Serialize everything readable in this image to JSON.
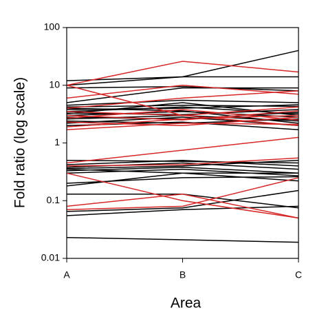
{
  "chart_data": {
    "type": "line",
    "x_label": "Area",
    "y_label": "Fold ratio (log scale)",
    "categories": [
      "A",
      "B",
      "C"
    ],
    "log_scale": true,
    "ylim": [
      0.01,
      100
    ],
    "yticks": [
      100,
      10,
      1,
      0.1,
      0.01
    ],
    "series": [
      {
        "color": "#000000",
        "values": [
          12,
          14,
          40
        ]
      },
      {
        "color": "#000000",
        "values": [
          10,
          14,
          14
        ]
      },
      {
        "color": "#000000",
        "values": [
          9,
          9.5,
          8
        ]
      },
      {
        "color": "#000000",
        "values": [
          5,
          9,
          9
        ]
      },
      {
        "color": "#000000",
        "values": [
          4.5,
          5.5,
          5
        ]
      },
      {
        "color": "#000000",
        "values": [
          4.2,
          4.5,
          4.3
        ]
      },
      {
        "color": "#000000",
        "values": [
          3.8,
          4,
          4.6
        ]
      },
      {
        "color": "#000000",
        "values": [
          3.5,
          4.2,
          3.2
        ]
      },
      {
        "color": "#000000",
        "values": [
          3.3,
          3.1,
          3.8
        ]
      },
      {
        "color": "#000000",
        "values": [
          3,
          3.5,
          2.8
        ]
      },
      {
        "color": "#000000",
        "values": [
          2.8,
          2.6,
          3.4
        ]
      },
      {
        "color": "#000000",
        "values": [
          2.6,
          3,
          2.4
        ]
      },
      {
        "color": "#000000",
        "values": [
          2.4,
          2.2,
          2.6
        ]
      },
      {
        "color": "#000000",
        "values": [
          2.2,
          2.8,
          2
        ]
      },
      {
        "color": "#000000",
        "values": [
          2,
          2.3,
          1.7
        ]
      },
      {
        "color": "#000000",
        "values": [
          4,
          3.6,
          2.2
        ]
      },
      {
        "color": "#000000",
        "values": [
          3.2,
          5,
          3
        ]
      },
      {
        "color": "#000000",
        "values": [
          0.5,
          0.48,
          0.45
        ]
      },
      {
        "color": "#000000",
        "values": [
          0.42,
          0.5,
          0.4
        ]
      },
      {
        "color": "#000000",
        "values": [
          0.38,
          0.45,
          0.35
        ]
      },
      {
        "color": "#000000",
        "values": [
          0.36,
          0.4,
          0.5
        ]
      },
      {
        "color": "#000000",
        "values": [
          0.33,
          0.38,
          0.3
        ]
      },
      {
        "color": "#000000",
        "values": [
          0.3,
          0.35,
          0.27
        ]
      },
      {
        "color": "#000000",
        "values": [
          0.35,
          0.3,
          0.22
        ]
      },
      {
        "color": "#000000",
        "values": [
          0.18,
          0.3,
          0.3
        ]
      },
      {
        "color": "#000000",
        "values": [
          0.2,
          0.25,
          0.26
        ]
      },
      {
        "color": "#000000",
        "values": [
          0.13,
          0.13,
          0.075
        ]
      },
      {
        "color": "#000000",
        "values": [
          0.065,
          0.075,
          0.15
        ]
      },
      {
        "color": "#000000",
        "values": [
          0.055,
          0.07,
          0.08
        ]
      },
      {
        "color": "#000000",
        "values": [
          0.023,
          0.021,
          0.019
        ]
      },
      {
        "color": "#d62728",
        "values": [
          10,
          26,
          17
        ]
      },
      {
        "color": "#d62728",
        "values": [
          10,
          3,
          2
        ]
      },
      {
        "color": "#d62728",
        "values": [
          6,
          10,
          7
        ]
      },
      {
        "color": "#d62728",
        "values": [
          4,
          6,
          8
        ]
      },
      {
        "color": "#d62728",
        "values": [
          3.5,
          3,
          4.2
        ]
      },
      {
        "color": "#d62728",
        "values": [
          3,
          2.5,
          3.6
        ]
      },
      {
        "color": "#d62728",
        "values": [
          2.7,
          3.8,
          2.5
        ]
      },
      {
        "color": "#d62728",
        "values": [
          2.3,
          2,
          2.8
        ]
      },
      {
        "color": "#d62728",
        "values": [
          1.9,
          2.6,
          3
        ]
      },
      {
        "color": "#d62728",
        "values": [
          1.7,
          2.2,
          2.1
        ]
      },
      {
        "color": "#d62728",
        "values": [
          0.45,
          0.75,
          1.25
        ]
      },
      {
        "color": "#d62728",
        "values": [
          0.4,
          0.42,
          0.55
        ]
      },
      {
        "color": "#d62728",
        "values": [
          0.3,
          0.1,
          0.05
        ]
      },
      {
        "color": "#d62728",
        "values": [
          0.08,
          0.13,
          0.05
        ]
      },
      {
        "color": "#d62728",
        "values": [
          0.07,
          0.08,
          0.25
        ]
      }
    ]
  }
}
